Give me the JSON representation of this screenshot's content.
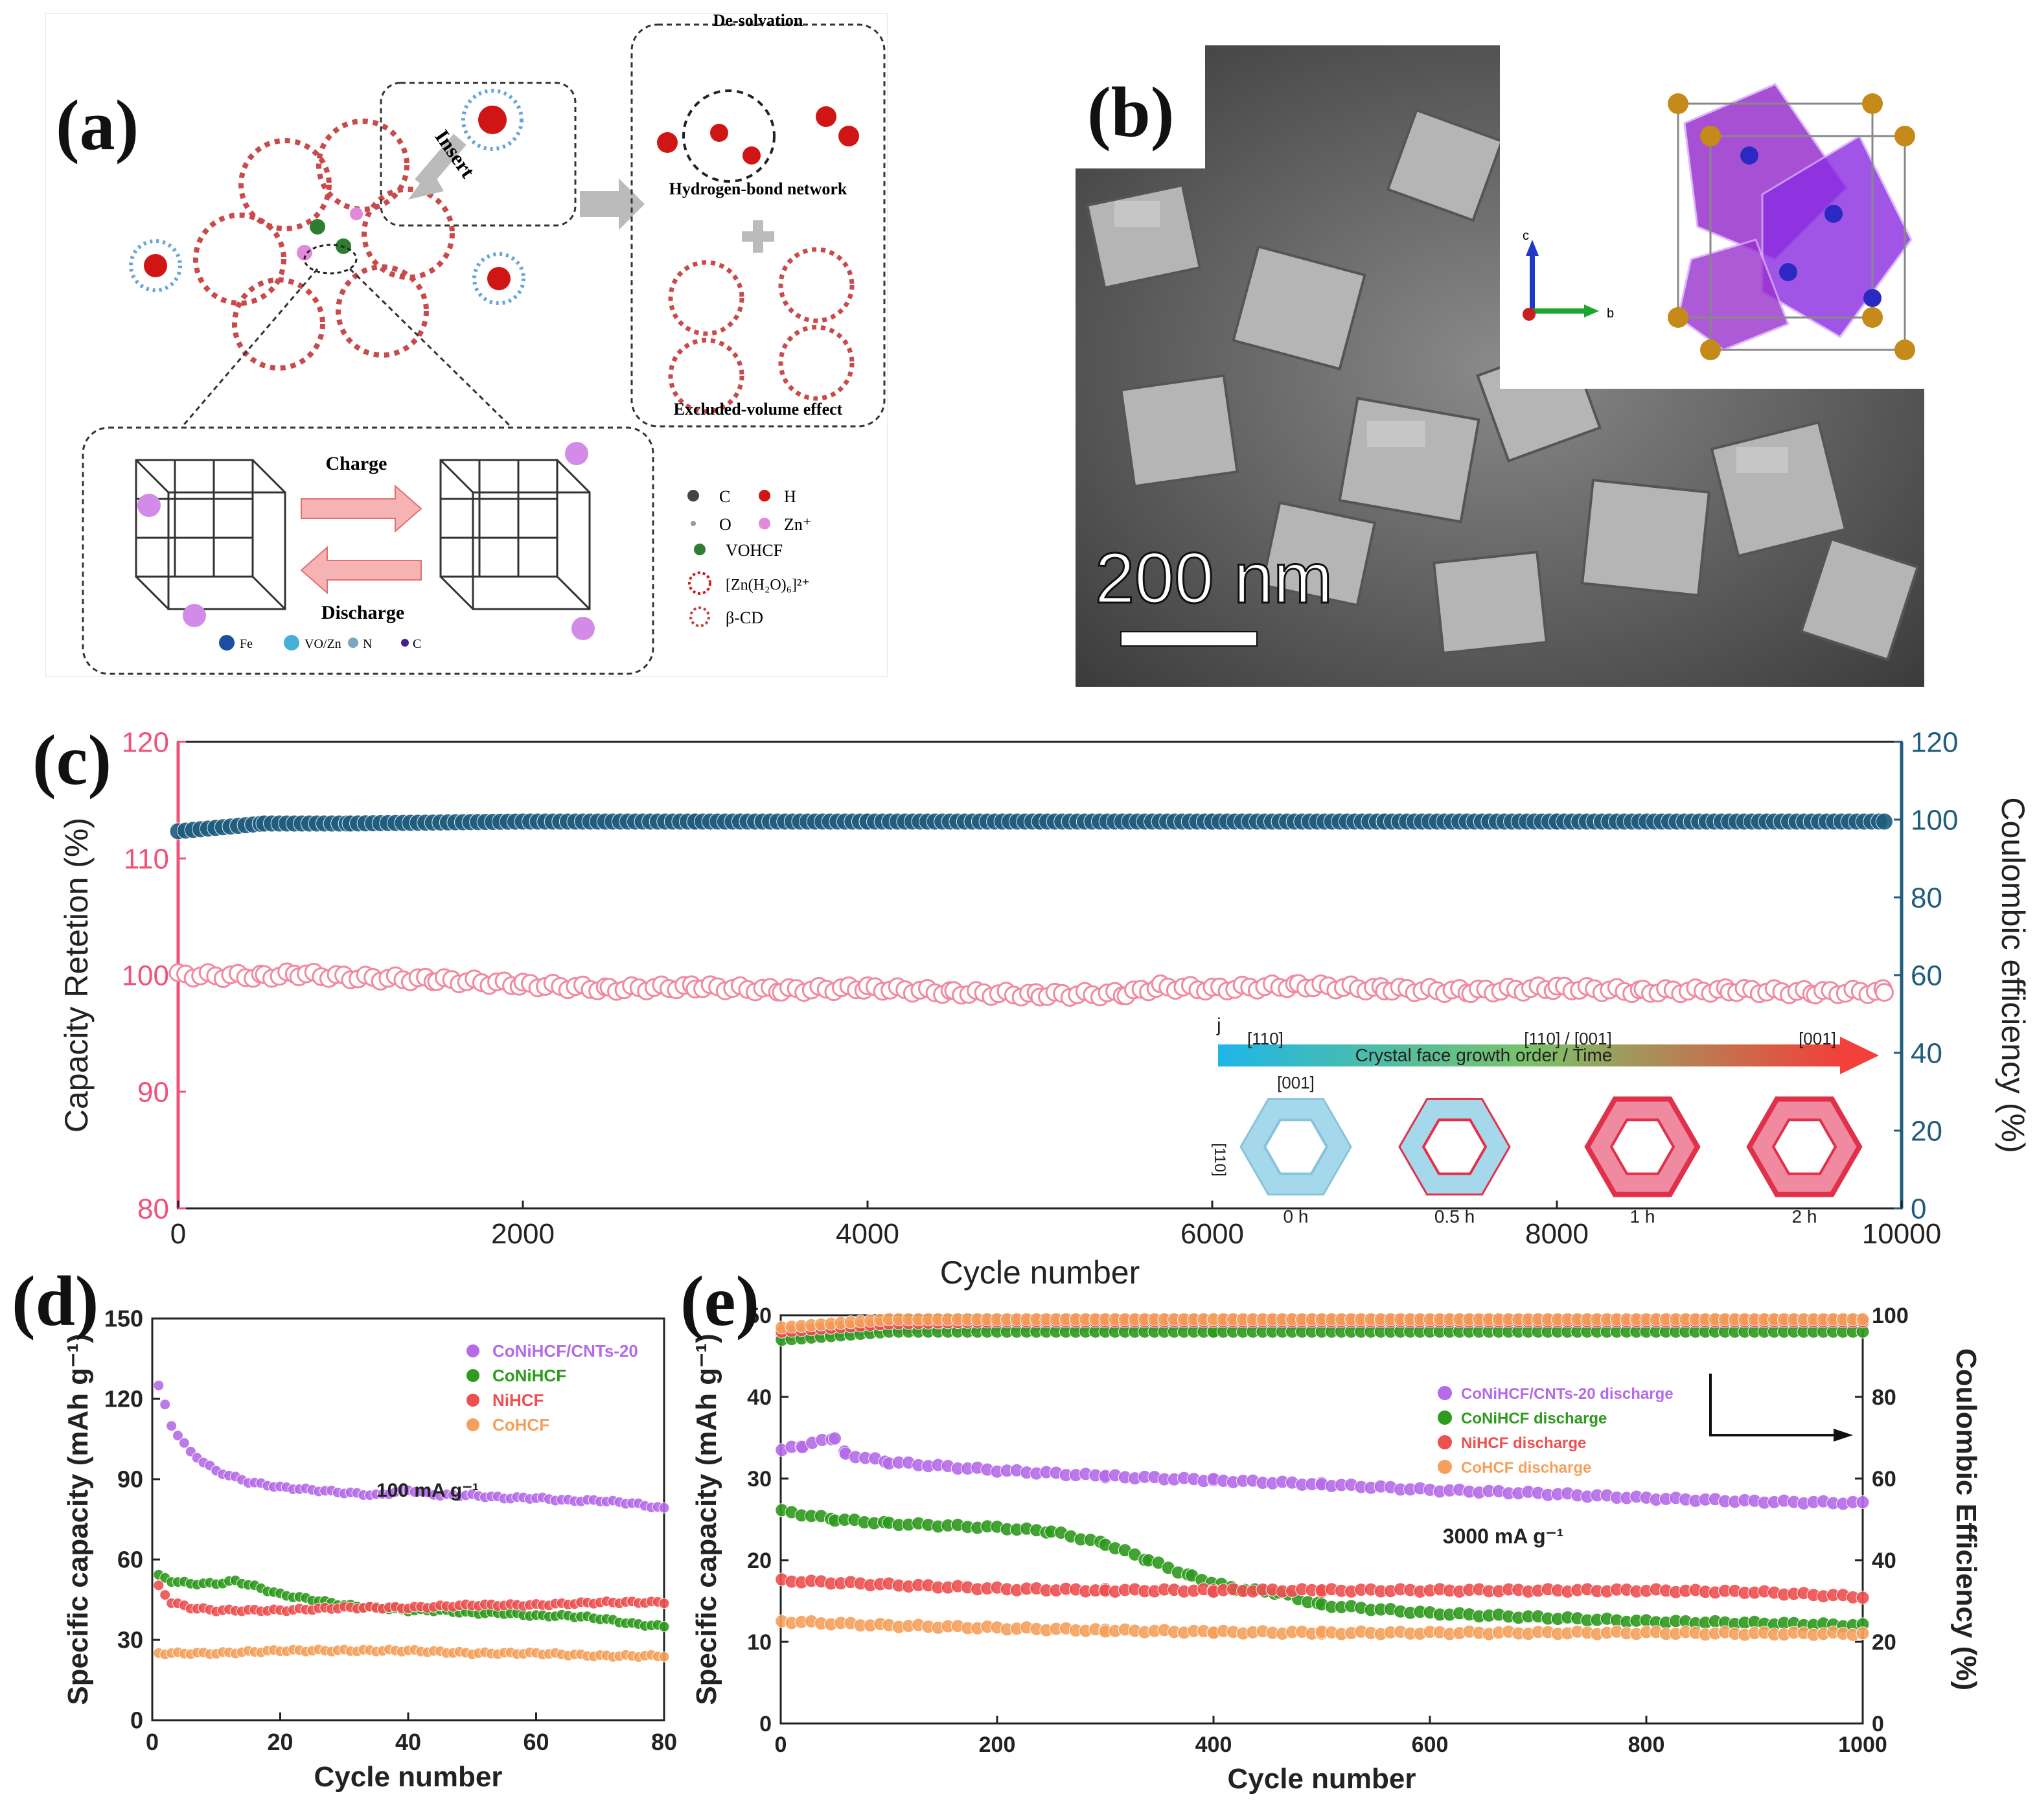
{
  "panels": {
    "a": {
      "label": "(a)",
      "insert_label": "Insert",
      "top_heading": "De-solvation",
      "hbond_label": "Hydrogen-bond network",
      "excluded_label": "Excluded-volume effect",
      "charge_label": "Charge",
      "discharge_label": "Discharge",
      "bottom_legend": [
        "Fe",
        "VO/Zn",
        "N",
        "C"
      ],
      "legend": [
        {
          "symbol": "C",
          "color": "#444444"
        },
        {
          "symbol": "H",
          "color": "#d01515"
        },
        {
          "symbol": "O",
          "color": "#999999"
        },
        {
          "symbol": "Zn⁺",
          "color": "#e08ad8"
        },
        {
          "symbol": "VOHCF",
          "color": "#2e7d32"
        },
        {
          "symbol": "[Zn(H₂O)₆]²⁺",
          "color": "#d01515"
        },
        {
          "symbol": "β-CD",
          "color": "#c04040"
        }
      ]
    },
    "b": {
      "label": "(b)",
      "scale_bar": "200 nm",
      "axes": [
        "c",
        "b"
      ]
    },
    "e_arrow_note": ""
  },
  "chart_data": [
    {
      "panel": "(c)",
      "type": "scatter",
      "xlabel": "Cycle number",
      "ylabel": "Capacity Retetion (%)",
      "y2label": "Coulombic efficiency (%)",
      "xlim": [
        0,
        10000
      ],
      "ylim": [
        80,
        120
      ],
      "y2lim": [
        0,
        120
      ],
      "xticks": [
        0,
        2000,
        4000,
        6000,
        8000,
        10000
      ],
      "yticks": [
        80,
        90,
        100,
        110,
        120
      ],
      "y2ticks": [
        0,
        20,
        40,
        60,
        80,
        100,
        120
      ],
      "series": [
        {
          "axis": "right",
          "color": "#1f5c7d",
          "x": [
            0,
            500,
            1000,
            2000,
            3000,
            4000,
            5000,
            6000,
            7000,
            8000,
            9000,
            9900
          ],
          "values": [
            97,
            99,
            99,
            99.5,
            99.5,
            99.5,
            99.5,
            99.5,
            99.5,
            99.5,
            99.5,
            99.5
          ]
        },
        {
          "axis": "left",
          "color": "#f08aa0",
          "x": [
            0,
            500,
            700,
            1000,
            1500,
            2000,
            2500,
            3000,
            3500,
            4000,
            4500,
            5000,
            5500,
            5700,
            6000,
            6500,
            7000,
            7500,
            8000,
            8500,
            9000,
            9500,
            9900
          ],
          "values": [
            100,
            99.9,
            100.1,
            99.8,
            99.6,
            99.2,
            98.8,
            99.0,
            98.7,
            98.9,
            98.5,
            98.3,
            98.4,
            99.0,
            98.8,
            99.1,
            98.8,
            98.6,
            98.9,
            98.6,
            98.7,
            98.5,
            98.6
          ]
        }
      ],
      "inset": {
        "tag": "j",
        "title": "Crystal face growth order / Time",
        "start": "[110]",
        "middle": "[110] / [001]",
        "end": "[001]",
        "face_top": "[001]",
        "face_side": "[110]",
        "times": [
          "0 h",
          "0.5 h",
          "1 h",
          "2 h"
        ]
      }
    },
    {
      "panel": "(d)",
      "type": "scatter",
      "xlabel": "Cycle number",
      "ylabel": "Specific capacity (mAh g⁻¹)",
      "xlim": [
        0,
        80
      ],
      "ylim": [
        0,
        150
      ],
      "xticks": [
        0,
        20,
        40,
        60,
        80
      ],
      "yticks": [
        0,
        30,
        60,
        90,
        120,
        150
      ],
      "annotation": "100 mA g⁻¹",
      "series": [
        {
          "name": "CoNiHCF/CNTs-20",
          "color": "#b46be8",
          "x": [
            1,
            3,
            6,
            10,
            15,
            20,
            25,
            30,
            35,
            40,
            45,
            50,
            55,
            60,
            65,
            70,
            75,
            80
          ],
          "values": [
            125,
            110,
            100,
            93,
            89,
            87,
            86,
            85,
            84,
            86,
            84,
            84,
            83,
            83,
            82,
            82,
            81,
            79
          ]
        },
        {
          "name": "CoNiHCF",
          "color": "#2e9a1e",
          "x": [
            1,
            3,
            6,
            10,
            13,
            16,
            20,
            25,
            30,
            35,
            40,
            45,
            50,
            55,
            60,
            65,
            70,
            75,
            80
          ],
          "values": [
            54,
            52,
            51,
            51,
            52,
            50,
            47,
            45,
            43,
            42,
            41,
            41,
            40,
            40,
            39,
            39,
            38,
            36,
            35
          ]
        },
        {
          "name": "NiHCF",
          "color": "#ee4f4f",
          "x": [
            1,
            3,
            6,
            10,
            20,
            30,
            40,
            50,
            60,
            70,
            80
          ],
          "values": [
            50,
            44,
            42,
            41,
            41,
            42,
            42,
            43,
            43,
            44,
            44
          ]
        },
        {
          "name": "CoHCF",
          "color": "#f5a05a",
          "x": [
            1,
            10,
            20,
            30,
            40,
            50,
            60,
            70,
            80
          ],
          "values": [
            25,
            25,
            26,
            26,
            26,
            25,
            25,
            24,
            24
          ]
        }
      ]
    },
    {
      "panel": "(e)",
      "type": "scatter",
      "xlabel": "Cycle number",
      "ylabel": "Specific capacity (mAh g⁻¹)",
      "y2label": "Coulombic Efficiency (%)",
      "xlim": [
        0,
        1000
      ],
      "ylim": [
        0,
        50
      ],
      "y2lim": [
        0,
        100
      ],
      "xticks": [
        0,
        200,
        400,
        600,
        800,
        1000
      ],
      "yticks": [
        0,
        10,
        20,
        30,
        40,
        50
      ],
      "y2ticks": [
        0,
        20,
        40,
        60,
        80,
        100
      ],
      "annotation": "3000 mA g⁻¹",
      "series": [
        {
          "name": "CoNiHCF/CNTs-20 discharge",
          "color": "#b46be8",
          "x": [
            1,
            20,
            50,
            60,
            100,
            200,
            300,
            400,
            500,
            600,
            700,
            800,
            900,
            1000
          ],
          "values": [
            33.5,
            34,
            35,
            33,
            32,
            31,
            30.3,
            29.8,
            29.3,
            28.6,
            28.2,
            27.6,
            27.2,
            27.0
          ]
        },
        {
          "name": "CoNiHCF discharge",
          "color": "#2e9a1e",
          "x": [
            1,
            50,
            100,
            200,
            250,
            300,
            340,
            380,
            420,
            460,
            500,
            600,
            700,
            800,
            900,
            1000
          ],
          "values": [
            26,
            25,
            24.5,
            24,
            23.5,
            22,
            20,
            18,
            16.5,
            16,
            14.5,
            13.5,
            13,
            12.5,
            12.3,
            12
          ]
        },
        {
          "name": "NiHCF discharge",
          "color": "#ee4f4f",
          "x": [
            1,
            100,
            200,
            300,
            400,
            500,
            600,
            700,
            800,
            900,
            1000
          ],
          "values": [
            17.5,
            17,
            16.5,
            16.3,
            16.3,
            16.3,
            16.3,
            16.3,
            16.3,
            16.1,
            15.5
          ]
        },
        {
          "name": "CoHCF discharge",
          "color": "#f5a05a",
          "x": [
            1,
            100,
            200,
            300,
            400,
            500,
            600,
            700,
            800,
            900,
            1000
          ],
          "values": [
            12.5,
            12,
            11.7,
            11.4,
            11.2,
            11.1,
            11.1,
            11.1,
            11.1,
            11.0,
            11.0
          ]
        },
        {
          "axis": "right",
          "name": "",
          "color": "#b46be8",
          "x": [
            1,
            100,
            200,
            400,
            600,
            800,
            1000
          ],
          "values": [
            95,
            97,
            97.5,
            97.8,
            98,
            98,
            98
          ]
        },
        {
          "axis": "right",
          "name": "",
          "color": "#2e9a1e",
          "x": [
            1,
            100,
            200,
            400,
            600,
            800,
            1000
          ],
          "values": [
            94,
            96,
            96,
            96,
            96,
            96,
            96
          ]
        },
        {
          "axis": "right",
          "name": "",
          "color": "#ee4f4f",
          "x": [
            1,
            100,
            200,
            400,
            600,
            800,
            1000
          ],
          "values": [
            96,
            98,
            98.5,
            98.5,
            98.5,
            98.5,
            98.5
          ]
        },
        {
          "axis": "right",
          "name": "",
          "color": "#f5a05a",
          "x": [
            1,
            100,
            200,
            400,
            600,
            800,
            1000
          ],
          "values": [
            97,
            99,
            99,
            99,
            99,
            99,
            99
          ]
        }
      ]
    }
  ]
}
